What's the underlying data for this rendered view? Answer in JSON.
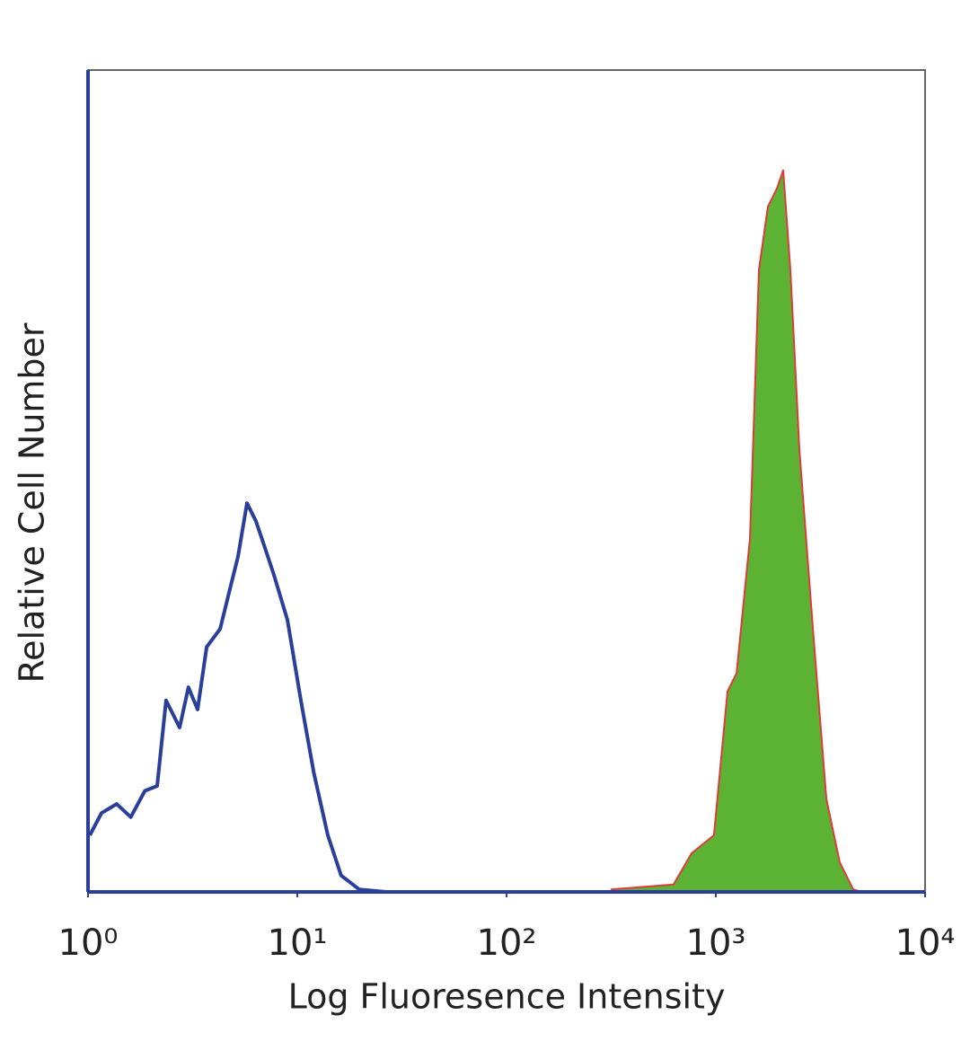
{
  "chart_data": {
    "type": "histogram-overlay",
    "x_label": "Log Fluoresence Intensity",
    "y_label": "Relative Cell Number",
    "xscale": "log",
    "xlim": [
      1,
      10000
    ],
    "xticks": [
      {
        "value": 1,
        "label": "10⁰"
      },
      {
        "value": 10,
        "label": "10¹"
      },
      {
        "value": 100,
        "label": "10²"
      },
      {
        "value": 1000,
        "label": "10³"
      },
      {
        "value": 10000,
        "label": "10⁴"
      }
    ],
    "ylim": [
      0,
      100
    ],
    "grid": false,
    "series": [
      {
        "color": "#2a3f9a",
        "fill": null,
        "x": [
          1.02,
          1.16,
          1.37,
          1.6,
          1.87,
          2.14,
          2.36,
          2.74,
          3.02,
          3.34,
          3.69,
          4.28,
          4.72,
          5.21,
          5.75,
          6.35,
          7.0,
          7.73,
          8.97,
          10.4,
          12.0,
          14.0,
          16.2,
          19.8,
          26.5
        ],
        "values": [
          6.9,
          9.6,
          10.7,
          9.1,
          12.3,
          12.9,
          23.3,
          20.0,
          24.9,
          22.2,
          29.8,
          32.0,
          36.4,
          40.8,
          47.3,
          45.1,
          41.9,
          38.6,
          33.1,
          23.3,
          14.5,
          6.9,
          2.0,
          0.3,
          0
        ]
      },
      {
        "color": "#e03a3a",
        "fill": "#5cb233",
        "x": [
          315,
          628,
          766,
          979,
          1137,
          1256,
          1456,
          1607,
          1774,
          1959,
          2099,
          2270,
          2506,
          2909,
          3375,
          3911,
          4535,
          5010
        ],
        "values": [
          0.3,
          0.9,
          4.7,
          6.9,
          24.4,
          26.6,
          43.0,
          75.7,
          83.4,
          85.6,
          87.8,
          75.7,
          53.9,
          32.0,
          11.3,
          3.6,
          0.3,
          0
        ]
      }
    ]
  }
}
